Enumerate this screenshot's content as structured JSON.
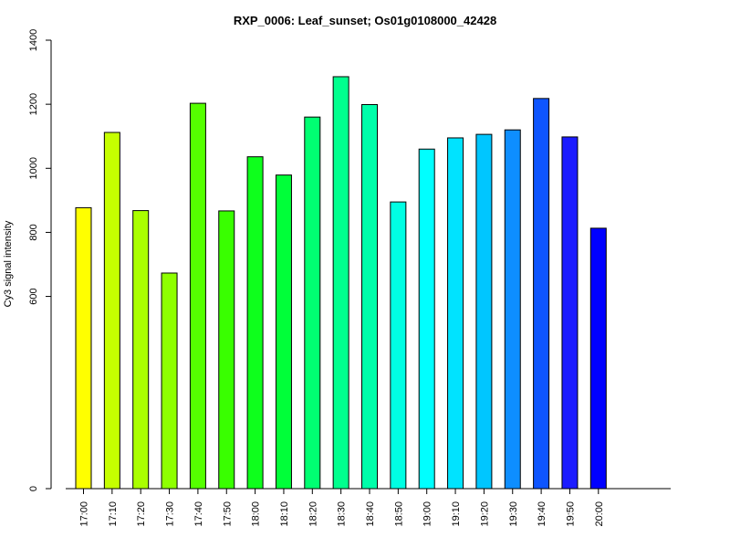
{
  "chart_data": {
    "type": "bar",
    "title": "RXP_0006: Leaf_sunset; Os01g0108000_42428",
    "xlabel": "",
    "ylabel": "Cy3 signal intensity",
    "ylim": [
      0,
      1400
    ],
    "yticks": [
      0,
      600,
      800,
      1000,
      1200,
      1400
    ],
    "grid": false,
    "categories": [
      "17:00",
      "17:10",
      "17:20",
      "17:30",
      "17:40",
      "17:50",
      "18:00",
      "18:10",
      "18:20",
      "18:30",
      "18:40",
      "18:50",
      "19:00",
      "19:10",
      "19:20",
      "19:30",
      "19:40",
      "19:50",
      "20:00"
    ],
    "values": [
      877,
      1112,
      868,
      673,
      1203,
      867,
      1036,
      979,
      1160,
      1286,
      1199,
      895,
      1060,
      1095,
      1106,
      1120,
      1218,
      1098,
      813
    ],
    "colors": [
      "#FFFF00",
      "#C6FF00",
      "#AAFF00",
      "#8EFF00",
      "#55FF00",
      "#39FF00",
      "#0EFF1C",
      "#00FF39",
      "#00FF72",
      "#00FF8E",
      "#00FFAA",
      "#00FFE3",
      "#00FFFF",
      "#00E3FF",
      "#00C6FF",
      "#0E8EFF",
      "#0E55FF",
      "#1C1CFF",
      "#0000FF"
    ]
  }
}
